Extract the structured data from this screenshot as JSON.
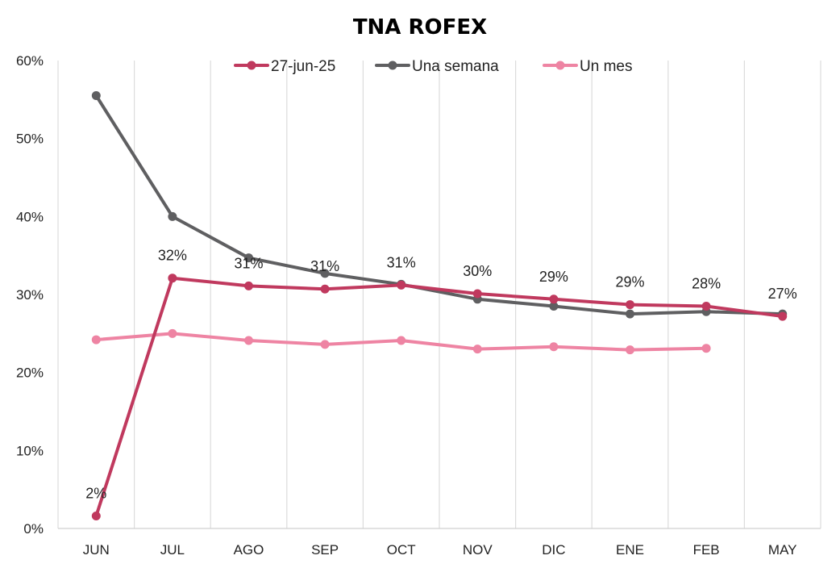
{
  "chart_data": {
    "type": "line",
    "title": "TNA ROFEX",
    "xlabel": "",
    "ylabel": "",
    "categories": [
      "JUN",
      "JUL",
      "AGO",
      "SEP",
      "OCT",
      "NOV",
      "DIC",
      "ENE",
      "FEB",
      "MAY"
    ],
    "y_ticks": [
      "0%",
      "10%",
      "20%",
      "30%",
      "40%",
      "50%",
      "60%"
    ],
    "ylim": [
      0,
      0.6
    ],
    "grid": "vertical",
    "legend_position": "top",
    "series": [
      {
        "name": "27-jun-25",
        "color": "#C0395E",
        "values": [
          0.016,
          0.321,
          0.311,
          0.307,
          0.312,
          0.301,
          0.294,
          0.287,
          0.285,
          0.272
        ],
        "labels": [
          "2%",
          "32%",
          "31%",
          "31%",
          "31%",
          "30%",
          "29%",
          "29%",
          "28%",
          "27%"
        ]
      },
      {
        "name": "Una semana",
        "color": "#5F5F61",
        "values": [
          0.555,
          0.4,
          0.347,
          0.327,
          0.313,
          0.294,
          0.285,
          0.275,
          0.278,
          0.275
        ]
      },
      {
        "name": "Un mes",
        "color": "#EE84A3",
        "values": [
          0.242,
          0.25,
          0.241,
          0.236,
          0.241,
          0.23,
          0.233,
          0.229,
          0.231,
          null
        ]
      }
    ]
  }
}
